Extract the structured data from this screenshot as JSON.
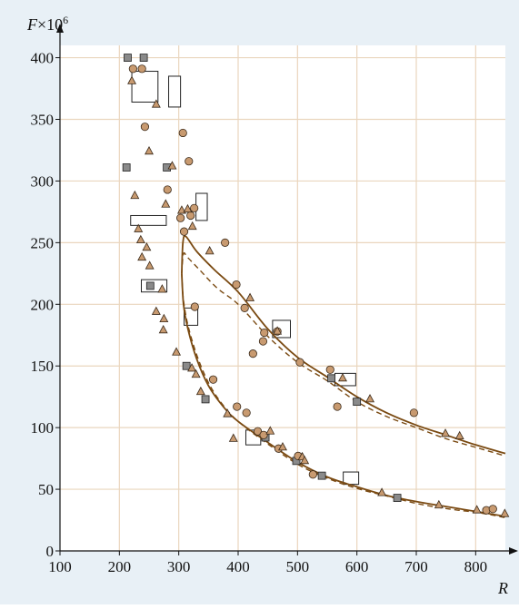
{
  "chart_data": {
    "type": "scatter",
    "y_label_main": "F",
    "y_label_factor": "×10",
    "y_label_exp": "6",
    "xlabel": "R",
    "xlim": [
      100,
      850
    ],
    "ylim": [
      0,
      410
    ],
    "xticks": [
      100,
      200,
      300,
      400,
      500,
      600,
      700,
      800
    ],
    "yticks": [
      0,
      50,
      100,
      150,
      200,
      250,
      300,
      350,
      400
    ],
    "grid": true,
    "colors": {
      "background": "#e8f0f6",
      "plot": "#ffffff",
      "grid": "#ead6be",
      "curve": "#7a4a12",
      "marker_fill": "#c89a70",
      "square_fill": "#8a8a8a",
      "box_fill": "#ffffff"
    },
    "series": [
      {
        "marker": "square",
        "points": [
          [
            214,
            400
          ],
          [
            241,
            400
          ],
          [
            212,
            311
          ],
          [
            280,
            311
          ],
          [
            252,
            215
          ],
          [
            313,
            150
          ],
          [
            345,
            123
          ],
          [
            446,
            92
          ],
          [
            498,
            73
          ],
          [
            541,
            61
          ],
          [
            557,
            140
          ],
          [
            600,
            121
          ],
          [
            668,
            43
          ]
        ]
      },
      {
        "marker": "circle",
        "points": [
          [
            223,
            391
          ],
          [
            238,
            391
          ],
          [
            243,
            344
          ],
          [
            307,
            339
          ],
          [
            317,
            316
          ],
          [
            281,
            293
          ],
          [
            303,
            270
          ],
          [
            320,
            272
          ],
          [
            326,
            278
          ],
          [
            309,
            259
          ],
          [
            378,
            250
          ],
          [
            397,
            216
          ],
          [
            411,
            197
          ],
          [
            425,
            160
          ],
          [
            442,
            170
          ],
          [
            444,
            177
          ],
          [
            466,
            178
          ],
          [
            504,
            153
          ],
          [
            555,
            147
          ],
          [
            567,
            117
          ],
          [
            696,
            112
          ],
          [
            327,
            198
          ],
          [
            358,
            139
          ],
          [
            398,
            117
          ],
          [
            414,
            112
          ],
          [
            433,
            97
          ],
          [
            443,
            94
          ],
          [
            468,
            83
          ],
          [
            501,
            77
          ],
          [
            526,
            62
          ],
          [
            818,
            33
          ],
          [
            829,
            34
          ]
        ]
      },
      {
        "marker": "triangle",
        "points": [
          [
            221,
            381
          ],
          [
            262,
            362
          ],
          [
            289,
            312
          ],
          [
            250,
            324
          ],
          [
            226,
            288
          ],
          [
            232,
            261
          ],
          [
            278,
            281
          ],
          [
            305,
            276
          ],
          [
            315,
            277
          ],
          [
            323,
            263
          ],
          [
            246,
            246
          ],
          [
            238,
            238
          ],
          [
            236,
            252
          ],
          [
            251,
            231
          ],
          [
            352,
            243
          ],
          [
            272,
            212
          ],
          [
            262,
            194
          ],
          [
            275,
            188
          ],
          [
            274,
            179
          ],
          [
            420,
            205
          ],
          [
            296,
            161
          ],
          [
            322,
            148
          ],
          [
            329,
            143
          ],
          [
            337,
            129
          ],
          [
            382,
            111
          ],
          [
            392,
            91
          ],
          [
            454,
            97
          ],
          [
            475,
            84
          ],
          [
            508,
            76
          ],
          [
            512,
            73
          ],
          [
            466,
            178
          ],
          [
            576,
            140
          ],
          [
            622,
            123
          ],
          [
            749,
            95
          ],
          [
            773,
            93
          ],
          [
            642,
            47
          ],
          [
            738,
            37
          ],
          [
            802,
            33
          ],
          [
            849,
            30
          ]
        ]
      }
    ],
    "boxes": [
      {
        "x": [
          221,
          265
        ],
        "y": [
          364,
          389
        ]
      },
      {
        "x": [
          283,
          303
        ],
        "y": [
          360,
          385
        ]
      },
      {
        "x": [
          219,
          279
        ],
        "y": [
          264,
          272
        ]
      },
      {
        "x": [
          329,
          348
        ],
        "y": [
          268,
          290
        ]
      },
      {
        "x": [
          237,
          280
        ],
        "y": [
          210,
          220
        ]
      },
      {
        "x": [
          309,
          332
        ],
        "y": [
          183,
          197
        ]
      },
      {
        "x": [
          458,
          488
        ],
        "y": [
          173,
          187
        ]
      },
      {
        "x": [
          563,
          598
        ],
        "y": [
          134,
          144
        ]
      },
      {
        "x": [
          413,
          438
        ],
        "y": [
          86,
          98
        ]
      },
      {
        "x": [
          577,
          603
        ],
        "y": [
          54,
          64
        ]
      }
    ],
    "curves": [
      {
        "style": "solid",
        "points": [
          [
            305,
            225
          ],
          [
            307,
            250
          ],
          [
            312,
            255
          ],
          [
            330,
            243
          ],
          [
            360,
            228
          ],
          [
            400,
            210
          ],
          [
            450,
            180
          ],
          [
            500,
            157
          ],
          [
            550,
            141
          ],
          [
            600,
            125
          ],
          [
            650,
            112
          ],
          [
            700,
            102
          ],
          [
            750,
            94
          ],
          [
            800,
            86
          ],
          [
            850,
            79
          ]
        ]
      },
      {
        "style": "dashed",
        "points": [
          [
            305,
            225
          ],
          [
            308,
            241
          ],
          [
            315,
            238
          ],
          [
            335,
            228
          ],
          [
            365,
            213
          ],
          [
            400,
            200
          ],
          [
            450,
            174
          ],
          [
            500,
            153
          ],
          [
            550,
            138
          ],
          [
            600,
            121
          ],
          [
            650,
            109
          ],
          [
            700,
            100
          ],
          [
            750,
            91
          ],
          [
            800,
            84
          ],
          [
            850,
            77
          ]
        ]
      },
      {
        "style": "solid",
        "points": [
          [
            305,
            225
          ],
          [
            308,
            200
          ],
          [
            315,
            181
          ],
          [
            330,
            156
          ],
          [
            350,
            134
          ],
          [
            375,
            117
          ],
          [
            400,
            105
          ],
          [
            450,
            88
          ],
          [
            500,
            72
          ],
          [
            550,
            60
          ],
          [
            600,
            52
          ],
          [
            650,
            45
          ],
          [
            700,
            40
          ],
          [
            750,
            36
          ],
          [
            800,
            32
          ],
          [
            850,
            28
          ]
        ]
      },
      {
        "style": "dashed",
        "points": [
          [
            305,
            225
          ],
          [
            308,
            203
          ],
          [
            317,
            180
          ],
          [
            334,
            154
          ],
          [
            355,
            132
          ],
          [
            380,
            115
          ],
          [
            405,
            103
          ],
          [
            455,
            85
          ],
          [
            505,
            69
          ],
          [
            555,
            58
          ],
          [
            605,
            50
          ],
          [
            655,
            44
          ],
          [
            705,
            38
          ],
          [
            755,
            34
          ],
          [
            805,
            31
          ],
          [
            850,
            27
          ]
        ]
      }
    ]
  }
}
